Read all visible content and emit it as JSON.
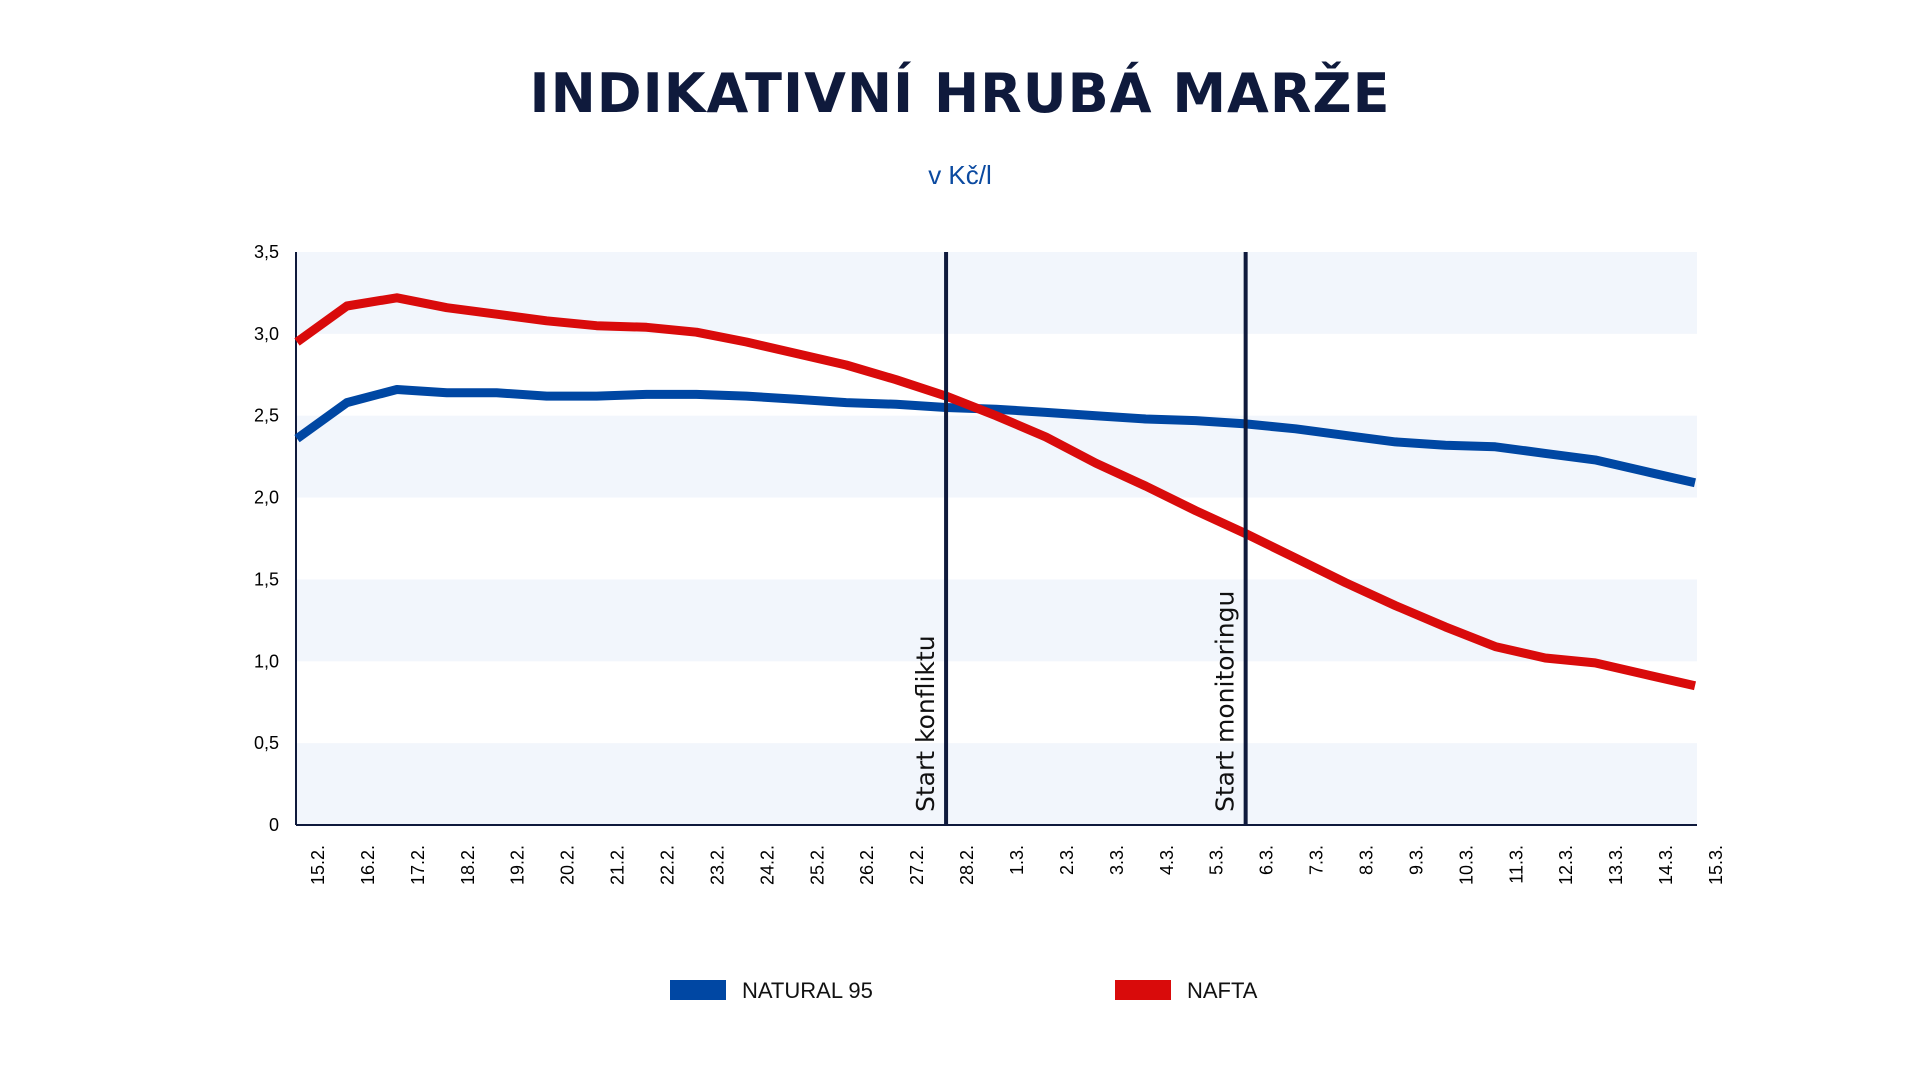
{
  "chart_data": {
    "type": "line",
    "title": "INDIKATIVNÍ HRUBÁ MARŽE",
    "subtitle": "v  Kč/l",
    "xlabel": "",
    "ylabel": "",
    "categories": [
      "15.2.",
      "16.2.",
      "17.2.",
      "18.2.",
      "19.2.",
      "20.2.",
      "21.2.",
      "22.2.",
      "23.2.",
      "24.2.",
      "25.2.",
      "26.2.",
      "27.2.",
      "28.2.",
      "1.3.",
      "2.3.",
      "3.3.",
      "4.3.",
      "5.3.",
      "6.3.",
      "7.3.",
      "8.3.",
      "9.3.",
      "10.3.",
      "11.3.",
      "12.3.",
      "13.3.",
      "14.3.",
      "15.3."
    ],
    "yticks": [
      "0",
      "0,5",
      "1,0",
      "1,5",
      "2,0",
      "2,5",
      "3,0",
      "3,5"
    ],
    "ylim": [
      0,
      3.5
    ],
    "grid": "alternating horizontal bands",
    "legend_position": "bottom",
    "series": [
      {
        "name": "NATURAL 95",
        "color": "#0047a3",
        "values": [
          2.36,
          2.58,
          2.66,
          2.64,
          2.64,
          2.62,
          2.62,
          2.63,
          2.63,
          2.62,
          2.6,
          2.58,
          2.57,
          2.55,
          2.54,
          2.52,
          2.5,
          2.48,
          2.47,
          2.45,
          2.42,
          2.38,
          2.34,
          2.32,
          2.31,
          2.27,
          2.23,
          2.16,
          2.09
        ]
      },
      {
        "name": "NAFTA",
        "color": "#d90b0b",
        "values": [
          2.95,
          3.17,
          3.22,
          3.16,
          3.12,
          3.08,
          3.05,
          3.04,
          3.01,
          2.95,
          2.88,
          2.81,
          2.72,
          2.62,
          2.5,
          2.37,
          2.21,
          2.07,
          1.92,
          1.78,
          1.63,
          1.48,
          1.34,
          1.21,
          1.09,
          1.02,
          0.99,
          0.92,
          0.85
        ]
      }
    ],
    "markers": [
      {
        "label": "Start konfliktu",
        "category": "28.2."
      },
      {
        "label": "Start monitoringu",
        "category": "6.3."
      }
    ]
  }
}
